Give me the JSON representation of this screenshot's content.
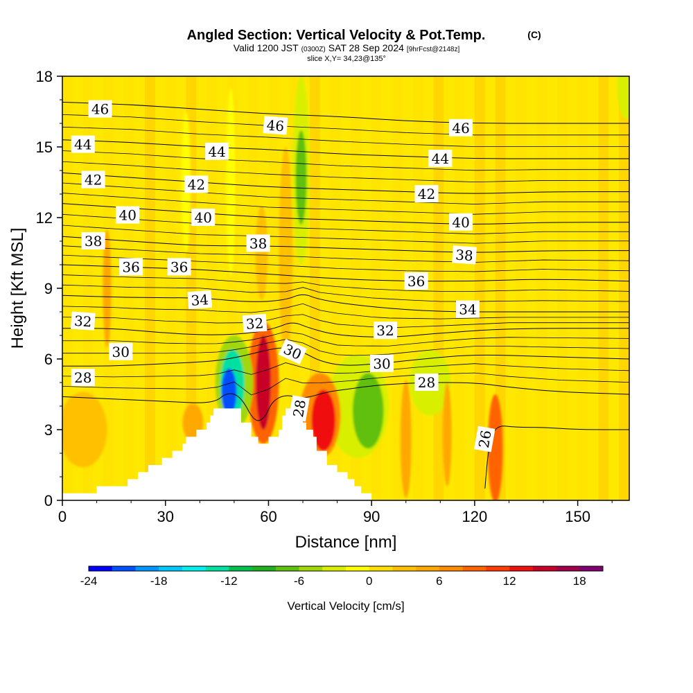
{
  "chart_data": {
    "type": "heatmap",
    "title": "Angled Section: Vertical Velocity & Pot.Temp.",
    "title_units": "(C)",
    "subtitle": {
      "valid": "Valid 1200 JST",
      "utc": "(0300Z)",
      "date": "SAT 28 Sep 2024",
      "forecast": "[9hrFcst@2148z]"
    },
    "slice_info": "slice X,Y= 34,23@135°",
    "xlabel": "Distance [nm]",
    "ylabel": "Height [Kft MSL]",
    "xlim": [
      0,
      165
    ],
    "ylim": [
      0,
      18
    ],
    "x_ticks": [
      "0",
      "30",
      "60",
      "90",
      "120",
      "150"
    ],
    "y_ticks": [
      "0",
      "3",
      "6",
      "9",
      "12",
      "15",
      "18"
    ],
    "x_tick_values": [
      0,
      30,
      60,
      90,
      120,
      150
    ],
    "y_tick_values": [
      0,
      3,
      6,
      9,
      12,
      15,
      18
    ],
    "colorbar": {
      "label": "Vertical Velocity [cm/s]",
      "range": [
        -24,
        20
      ],
      "step": 2,
      "tick_labels": [
        "-24",
        "-18",
        "-12",
        "-6",
        "0",
        "6",
        "12",
        "18"
      ],
      "tick_values": [
        -24,
        -18,
        -12,
        -6,
        0,
        6,
        12,
        18
      ],
      "colors": [
        "#0000ff",
        "#0050ff",
        "#0096ff",
        "#00c8ff",
        "#00f0f0",
        "#00e0a0",
        "#00c050",
        "#20b020",
        "#60c010",
        "#a0d808",
        "#d8f000",
        "#ffff00",
        "#ffe000",
        "#ffc000",
        "#ffa800",
        "#ff8c00",
        "#ff6400",
        "#ff3c00",
        "#f01010",
        "#c80028",
        "#a0004a",
        "#800070"
      ]
    },
    "terrain_profile": [
      [
        0,
        0.3
      ],
      [
        10,
        0.3
      ],
      [
        10,
        0.6
      ],
      [
        19,
        0.6
      ],
      [
        19,
        0.9
      ],
      [
        22,
        0.9
      ],
      [
        22,
        1.2
      ],
      [
        25,
        1.2
      ],
      [
        25,
        1.5
      ],
      [
        29,
        1.5
      ],
      [
        29,
        1.8
      ],
      [
        32,
        1.8
      ],
      [
        32,
        2.1
      ],
      [
        35,
        2.1
      ],
      [
        35,
        2.4
      ],
      [
        36,
        2.4
      ],
      [
        36,
        2.7
      ],
      [
        39,
        2.7
      ],
      [
        39,
        3.0
      ],
      [
        42,
        3.0
      ],
      [
        42,
        3.3
      ],
      [
        43,
        3.3
      ],
      [
        43,
        3.6
      ],
      [
        44,
        3.6
      ],
      [
        44,
        3.9
      ],
      [
        52,
        3.9
      ],
      [
        52,
        3.3
      ],
      [
        55,
        3.3
      ],
      [
        55,
        2.7
      ],
      [
        57,
        2.7
      ],
      [
        57,
        2.4
      ],
      [
        60,
        2.4
      ],
      [
        60,
        2.7
      ],
      [
        63,
        2.7
      ],
      [
        63,
        3.0
      ],
      [
        64,
        3.0
      ],
      [
        64,
        3.6
      ],
      [
        65,
        3.6
      ],
      [
        65,
        3.9
      ],
      [
        70,
        3.9
      ],
      [
        70,
        3.3
      ],
      [
        71,
        3.3
      ],
      [
        71,
        3.0
      ],
      [
        73,
        3.0
      ],
      [
        73,
        2.7
      ],
      [
        74,
        2.7
      ],
      [
        74,
        2.1
      ],
      [
        77,
        2.1
      ],
      [
        77,
        1.5
      ],
      [
        80,
        1.5
      ],
      [
        80,
        1.2
      ],
      [
        83,
        1.2
      ],
      [
        83,
        0.9
      ],
      [
        85,
        0.9
      ],
      [
        85,
        0.6
      ],
      [
        87,
        0.6
      ],
      [
        87,
        0.3
      ],
      [
        90,
        0.3
      ],
      [
        90,
        0
      ],
      [
        165,
        0
      ],
      [
        0,
        0
      ]
    ],
    "isentropes": [
      {
        "theta": 26,
        "points": [
          [
            123,
            0.5
          ],
          [
            124,
            2.2
          ],
          [
            126,
            3.2
          ],
          [
            132,
            3.1
          ],
          [
            140,
            3.1
          ],
          [
            150,
            3.0
          ],
          [
            165,
            3.0
          ]
        ]
      },
      {
        "theta": 28,
        "points": [
          [
            0,
            4.4
          ],
          [
            15,
            4.3
          ],
          [
            30,
            4.2
          ],
          [
            44,
            4.1
          ],
          [
            48,
            4.6
          ],
          [
            52,
            4.4
          ],
          [
            56,
            3.3
          ],
          [
            59,
            3.5
          ],
          [
            61,
            4.2
          ],
          [
            65,
            4.5
          ],
          [
            70,
            4.3
          ],
          [
            77,
            4.6
          ],
          [
            82,
            4.7
          ],
          [
            92,
            4.9
          ],
          [
            105,
            5.0
          ],
          [
            120,
            5.0
          ],
          [
            130,
            4.8
          ],
          [
            145,
            4.6
          ],
          [
            165,
            4.5
          ]
        ]
      },
      {
        "theta": 30,
        "points": [
          [
            0,
            5.7
          ],
          [
            15,
            5.7
          ],
          [
            30,
            5.8
          ],
          [
            44,
            5.9
          ],
          [
            52,
            6.1
          ],
          [
            60,
            6.4
          ],
          [
            65,
            6.5
          ],
          [
            70,
            6.3
          ],
          [
            75,
            5.9
          ],
          [
            82,
            5.7
          ],
          [
            92,
            5.8
          ],
          [
            105,
            6.0
          ],
          [
            120,
            6.2
          ],
          [
            140,
            6.1
          ],
          [
            165,
            6.0
          ]
        ]
      },
      {
        "theta": 32,
        "points": [
          [
            0,
            7.3
          ],
          [
            15,
            7.3
          ],
          [
            30,
            7.1
          ],
          [
            44,
            7.0
          ],
          [
            55,
            7.1
          ],
          [
            62,
            7.3
          ],
          [
            67,
            7.6
          ],
          [
            72,
            7.3
          ],
          [
            80,
            7.0
          ],
          [
            95,
            6.9
          ],
          [
            110,
            7.1
          ],
          [
            130,
            7.3
          ],
          [
            165,
            7.3
          ]
        ]
      },
      {
        "theta": 34,
        "points": [
          [
            0,
            8.7
          ],
          [
            20,
            8.6
          ],
          [
            40,
            8.6
          ],
          [
            55,
            8.4
          ],
          [
            65,
            8.5
          ],
          [
            70,
            8.8
          ],
          [
            75,
            8.5
          ],
          [
            90,
            8.2
          ],
          [
            110,
            8.0
          ],
          [
            130,
            8.0
          ],
          [
            165,
            8.0
          ]
        ]
      },
      {
        "theta": 36,
        "points": [
          [
            0,
            10.0
          ],
          [
            20,
            9.9
          ],
          [
            40,
            9.8
          ],
          [
            60,
            9.6
          ],
          [
            80,
            9.4
          ],
          [
            100,
            9.3
          ],
          [
            120,
            9.3
          ],
          [
            140,
            9.4
          ],
          [
            165,
            9.3
          ]
        ]
      },
      {
        "theta": 38,
        "points": [
          [
            0,
            11.2
          ],
          [
            20,
            11.0
          ],
          [
            40,
            10.8
          ],
          [
            60,
            10.8
          ],
          [
            80,
            10.7
          ],
          [
            100,
            10.6
          ],
          [
            120,
            10.5
          ],
          [
            140,
            10.6
          ],
          [
            165,
            10.6
          ]
        ]
      },
      {
        "theta": 40,
        "points": [
          [
            0,
            12.6
          ],
          [
            20,
            12.4
          ],
          [
            40,
            12.2
          ],
          [
            60,
            12.0
          ],
          [
            80,
            11.9
          ],
          [
            100,
            11.8
          ],
          [
            120,
            11.7
          ],
          [
            140,
            11.8
          ],
          [
            165,
            11.8
          ]
        ]
      },
      {
        "theta": 42,
        "points": [
          [
            0,
            13.9
          ],
          [
            20,
            13.7
          ],
          [
            40,
            13.5
          ],
          [
            60,
            13.3
          ],
          [
            80,
            13.2
          ],
          [
            100,
            13.1
          ],
          [
            120,
            13.0
          ],
          [
            140,
            13.1
          ],
          [
            165,
            13.1
          ]
        ]
      },
      {
        "theta": 44,
        "points": [
          [
            0,
            15.3
          ],
          [
            20,
            15.2
          ],
          [
            40,
            15.0
          ],
          [
            60,
            14.9
          ],
          [
            80,
            14.7
          ],
          [
            100,
            14.6
          ],
          [
            120,
            14.5
          ],
          [
            140,
            14.5
          ],
          [
            165,
            14.5
          ]
        ]
      },
      {
        "theta": 46,
        "points": [
          [
            0,
            16.9
          ],
          [
            20,
            16.8
          ],
          [
            40,
            16.6
          ],
          [
            60,
            16.4
          ],
          [
            80,
            16.3
          ],
          [
            100,
            16.1
          ],
          [
            120,
            16.0
          ],
          [
            140,
            16.0
          ],
          [
            165,
            16.0
          ]
        ]
      }
    ],
    "contour_labels": [
      {
        "text": "46",
        "x": 11,
        "y": 16.6,
        "rot": 0
      },
      {
        "text": "46",
        "x": 62,
        "y": 15.9,
        "rot": 4
      },
      {
        "text": "46",
        "x": 116,
        "y": 15.8,
        "rot": 0
      },
      {
        "text": "44",
        "x": 6,
        "y": 15.1,
        "rot": 0
      },
      {
        "text": "44",
        "x": 45,
        "y": 14.8,
        "rot": 0
      },
      {
        "text": "44",
        "x": 110,
        "y": 14.5,
        "rot": 0
      },
      {
        "text": "42",
        "x": 9,
        "y": 13.6,
        "rot": 0
      },
      {
        "text": "42",
        "x": 39,
        "y": 13.4,
        "rot": 0
      },
      {
        "text": "42",
        "x": 106,
        "y": 13.0,
        "rot": 0
      },
      {
        "text": "40",
        "x": 19,
        "y": 12.1,
        "rot": 0
      },
      {
        "text": "40",
        "x": 41,
        "y": 12.0,
        "rot": 0
      },
      {
        "text": "40",
        "x": 116,
        "y": 11.8,
        "rot": 0
      },
      {
        "text": "38",
        "x": 9,
        "y": 11.0,
        "rot": 0
      },
      {
        "text": "38",
        "x": 57,
        "y": 10.9,
        "rot": 0
      },
      {
        "text": "38",
        "x": 117,
        "y": 10.4,
        "rot": 4
      },
      {
        "text": "36",
        "x": 20,
        "y": 9.9,
        "rot": 0
      },
      {
        "text": "36",
        "x": 34,
        "y": 9.9,
        "rot": 0
      },
      {
        "text": "36",
        "x": 103,
        "y": 9.3,
        "rot": 0
      },
      {
        "text": "34",
        "x": 40,
        "y": 8.5,
        "rot": -4
      },
      {
        "text": "34",
        "x": 118,
        "y": 8.1,
        "rot": 0
      },
      {
        "text": "32",
        "x": 6,
        "y": 7.6,
        "rot": 4
      },
      {
        "text": "32",
        "x": 56,
        "y": 7.5,
        "rot": -4
      },
      {
        "text": "32",
        "x": 94,
        "y": 7.2,
        "rot": 0
      },
      {
        "text": "30",
        "x": 17,
        "y": 6.3,
        "rot": 0
      },
      {
        "text": "30",
        "x": 67,
        "y": 6.3,
        "rot": 25
      },
      {
        "text": "30",
        "x": 93,
        "y": 5.8,
        "rot": 0
      },
      {
        "text": "28",
        "x": 6,
        "y": 5.2,
        "rot": 0
      },
      {
        "text": "28",
        "x": 106,
        "y": 5.0,
        "rot": 0
      },
      {
        "text": "28",
        "x": 69,
        "y": 3.9,
        "rot": -80
      },
      {
        "text": "26",
        "x": 123,
        "y": 2.6,
        "rot": -80
      }
    ],
    "velocity_features": [
      {
        "x": 48.5,
        "y": 4.6,
        "rx": 2.2,
        "ry": 1.0,
        "v": -22
      },
      {
        "x": 49.5,
        "y": 4.9,
        "rx": 3.5,
        "ry": 1.5,
        "v": -14
      },
      {
        "x": 50,
        "y": 5.0,
        "rx": 5.5,
        "ry": 2.0,
        "v": -6
      },
      {
        "x": 58.5,
        "y": 5.0,
        "rx": 2.2,
        "ry": 2.0,
        "v": 14
      },
      {
        "x": 58.5,
        "y": 5.0,
        "rx": 4.5,
        "ry": 2.6,
        "v": 8
      },
      {
        "x": 76,
        "y": 3.4,
        "rx": 3.5,
        "ry": 1.3,
        "v": 13
      },
      {
        "x": 75,
        "y": 3.6,
        "rx": 6.0,
        "ry": 1.8,
        "v": 6
      },
      {
        "x": 89,
        "y": 3.8,
        "rx": 4.5,
        "ry": 1.6,
        "v": -8
      },
      {
        "x": 86,
        "y": 4.0,
        "rx": 9.0,
        "ry": 2.2,
        "v": -4
      },
      {
        "x": 69.5,
        "y": 13.7,
        "rx": 1.6,
        "ry": 2.0,
        "v": -8
      },
      {
        "x": 69.5,
        "y": 14.0,
        "rx": 2.5,
        "ry": 4.0,
        "v": -4
      },
      {
        "x": 126,
        "y": 2.2,
        "rx": 2.2,
        "ry": 2.3,
        "v": 9
      },
      {
        "x": 100,
        "y": 2.6,
        "rx": 1.6,
        "ry": 2.5,
        "v": 5
      },
      {
        "x": 112,
        "y": 2.8,
        "rx": 1.3,
        "ry": 2.2,
        "v": 4
      },
      {
        "x": 107,
        "y": 5.0,
        "rx": 6.0,
        "ry": 1.4,
        "v": -3
      },
      {
        "x": 164,
        "y": 17.6,
        "rx": 2.5,
        "ry": 1.4,
        "v": -4
      },
      {
        "x": 13,
        "y": 9.0,
        "rx": 1.2,
        "ry": 2.5,
        "v": 5
      },
      {
        "x": 65,
        "y": 10.5,
        "rx": 2.0,
        "ry": 4.5,
        "v": 3
      },
      {
        "x": 58,
        "y": 10.5,
        "rx": 1.8,
        "ry": 2.0,
        "v": 3
      },
      {
        "x": 38,
        "y": 3.3,
        "rx": 3.0,
        "ry": 0.8,
        "v": 5
      },
      {
        "x": 6,
        "y": 3.0,
        "rx": 7.0,
        "ry": 1.6,
        "v": 3
      },
      {
        "x": 49,
        "y": 13.5,
        "rx": 1.3,
        "ry": 4.0,
        "v": -2
      },
      {
        "x": 36,
        "y": 13.5,
        "rx": 1.3,
        "ry": 3.0,
        "v": -2
      }
    ]
  }
}
